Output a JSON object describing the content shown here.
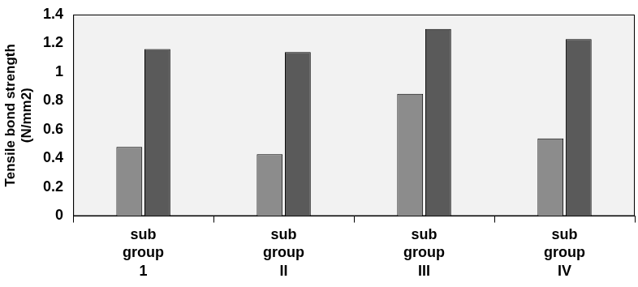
{
  "chart_data": {
    "type": "bar",
    "y_label": [
      "Tensile bond strength",
      "(N/mm2)"
    ],
    "categories": [
      "sub group 1",
      "sub group II",
      "sub group III",
      "sub group IV"
    ],
    "series": [
      {
        "color": "#8c8c8c",
        "values": [
          0.48,
          0.43,
          0.85,
          0.54
        ]
      },
      {
        "color": "#5a5a5a",
        "values": [
          1.16,
          1.14,
          1.3,
          1.23
        ]
      }
    ],
    "ylim": [
      0,
      1.4
    ],
    "yticks": [
      0,
      0.2,
      0.4,
      0.6,
      0.8,
      1,
      1.2,
      1.4
    ],
    "grid": false
  }
}
